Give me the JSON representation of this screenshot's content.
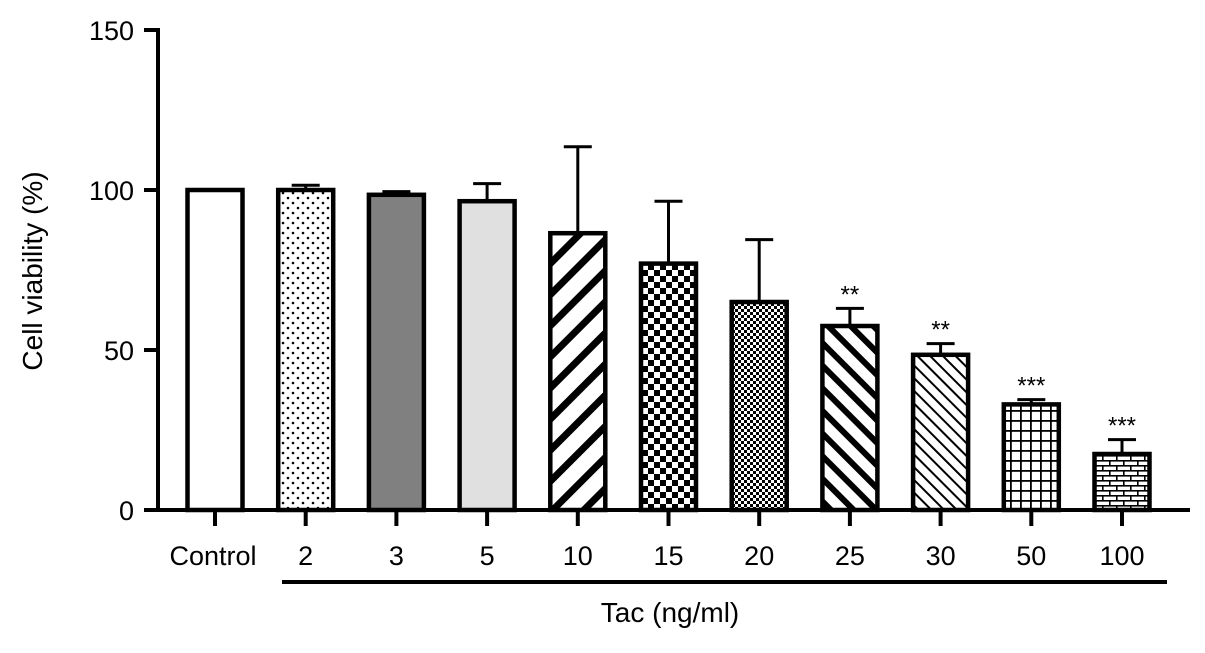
{
  "chart_data": {
    "type": "bar",
    "categories": [
      "Control",
      "2",
      "3",
      "5",
      "10",
      "15",
      "20",
      "25",
      "30",
      "50",
      "100"
    ],
    "values": [
      100,
      100,
      98.5,
      96.5,
      86.5,
      77,
      65,
      57.5,
      48.5,
      33,
      17.5
    ],
    "errors": [
      0,
      1.5,
      1,
      5.5,
      27,
      19.5,
      19.5,
      5.5,
      3.5,
      1.5,
      4.5
    ],
    "significance": [
      "",
      "",
      "",
      "",
      "",
      "",
      "",
      "**",
      "**",
      "***",
      "***"
    ],
    "patterns": [
      "white",
      "dots",
      "dark-gray",
      "light-gray",
      "diagonal-wide",
      "checker",
      "fine-checker",
      "diagonal-thick",
      "diagonal-thin",
      "grid",
      "brick"
    ],
    "ylabel": "Cell viability (%)",
    "xlabel": "Tac (ng/ml)",
    "ylim": [
      0,
      150
    ],
    "yticks": [
      0,
      50,
      100,
      150
    ],
    "grid": false,
    "colors": {
      "bar_stroke": "#000000",
      "dark_fill": "#808080",
      "light_fill": "#e0e0e0"
    }
  }
}
